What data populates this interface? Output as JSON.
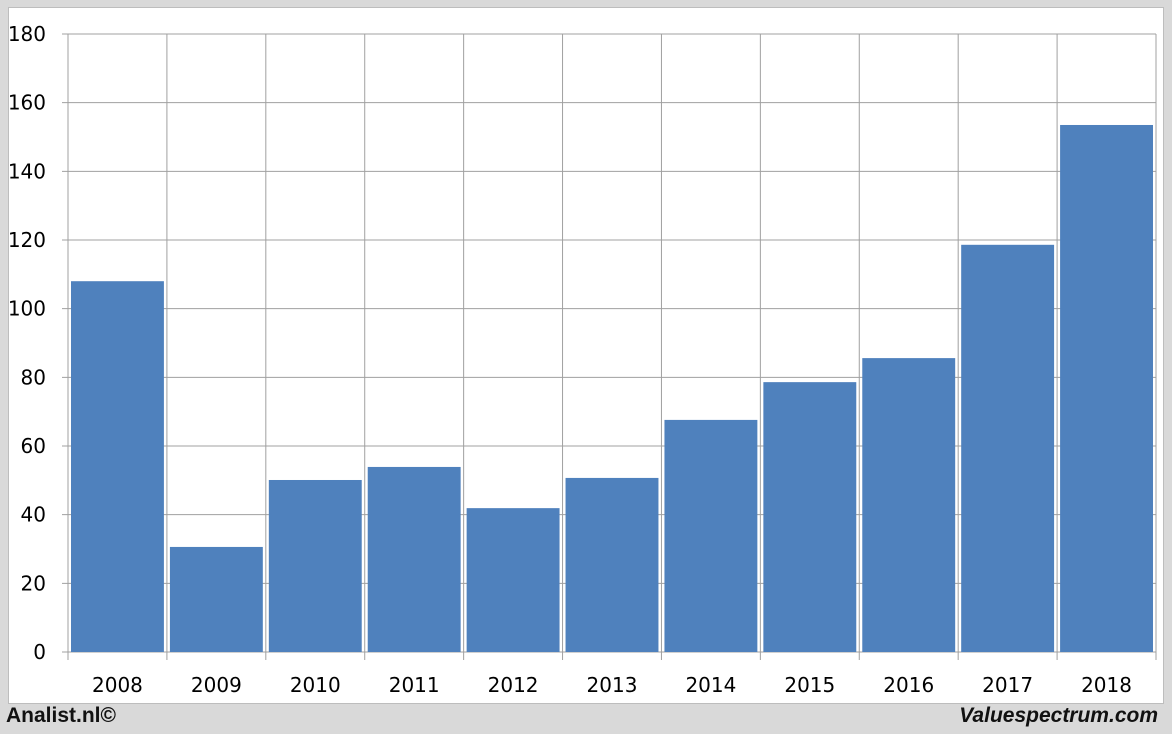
{
  "chart_data": {
    "type": "bar",
    "categories": [
      "2008",
      "2009",
      "2010",
      "2011",
      "2012",
      "2013",
      "2014",
      "2015",
      "2016",
      "2017",
      "2018"
    ],
    "values": [
      108,
      30.6,
      50.1,
      53.9,
      41.9,
      50.7,
      67.6,
      78.6,
      85.6,
      118.6,
      153.5
    ],
    "ylim": [
      0,
      180
    ],
    "yticks": [
      0,
      20,
      40,
      60,
      80,
      100,
      120,
      140,
      160,
      180
    ],
    "grid": true,
    "bar_color": "#4f81bd",
    "title": "",
    "xlabel": "",
    "ylabel": ""
  },
  "footer": {
    "left": "Analist.nl©",
    "right": "Valuespectrum.com"
  }
}
